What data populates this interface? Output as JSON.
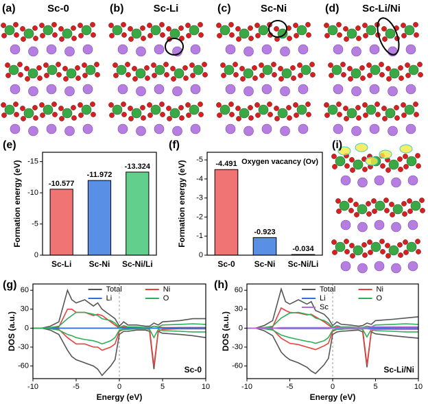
{
  "structure_panels": [
    {
      "label": "(a)",
      "title": "Sc-0"
    },
    {
      "label": "(b)",
      "title": "Sc-Li"
    },
    {
      "label": "(c)",
      "title": "Sc-Ni"
    },
    {
      "label": "(d)",
      "title": "Sc-Li/Ni"
    },
    {
      "label": "(i)"
    }
  ],
  "chart_data": [
    {
      "type": "bar",
      "panel_label": "(e)",
      "ylabel": "Formation energy (eV)",
      "categories": [
        "Sc-Li",
        "Sc-Ni",
        "Sc-Ni/Li"
      ],
      "values": [
        -10.577,
        -11.972,
        -13.324
      ],
      "colors": [
        "#f07474",
        "#5a8fe6",
        "#62d08c"
      ],
      "ylim": [
        0,
        -16.5
      ],
      "yticks": [
        -15,
        -10,
        -5,
        0
      ]
    },
    {
      "type": "bar",
      "panel_label": "(f)",
      "ylabel": "Formation energy (eV)",
      "annotation": "Oxygen vacancy (Ov)",
      "categories": [
        "Sc-0",
        "Sc-Ni",
        "Sc-Ni/Li"
      ],
      "values": [
        -4.491,
        -0.923,
        -0.034
      ],
      "colors": [
        "#f07474",
        "#5a8fe6",
        "#62d08c"
      ],
      "ylim": [
        0,
        -5.4
      ],
      "yticks": [
        -5,
        -4,
        -3,
        -2,
        -1,
        0
      ]
    },
    {
      "type": "line",
      "panel_label": "(g)",
      "xlabel": "Energy (eV)",
      "ylabel": "DOS (a.u.)",
      "annotation": "Sc-0",
      "xlim": [
        -10,
        10
      ],
      "xticks": [
        -10,
        -5,
        0,
        5,
        10
      ],
      "ylim": [
        -80,
        70
      ],
      "yticks": [
        -60,
        -30,
        0,
        30,
        60
      ],
      "x": [
        -10,
        -9,
        -8,
        -7,
        -6,
        -5.5,
        -5,
        -4,
        -3,
        -2.5,
        -2,
        -1,
        -0.5,
        0,
        0.5,
        1,
        2,
        3,
        3.5,
        4,
        4.5,
        5,
        7,
        8.5,
        10
      ],
      "series": [
        {
          "name": "Total",
          "color": "#555555",
          "values": [
            0,
            0,
            3,
            10,
            60,
            45,
            40,
            45,
            35,
            40,
            30,
            20,
            15,
            3,
            10,
            5,
            5,
            3,
            3,
            8,
            5,
            10,
            12,
            15,
            15
          ],
          "values_down": [
            0,
            0,
            -3,
            -10,
            -35,
            -45,
            -50,
            -55,
            -60,
            -65,
            -75,
            -60,
            -50,
            -10,
            -5,
            -5,
            -3,
            -3,
            -5,
            -65,
            -5,
            -8,
            -10,
            -12,
            -15
          ]
        },
        {
          "name": "Ni",
          "color": "#e8403a",
          "values": [
            0,
            0,
            0,
            2,
            30,
            30,
            25,
            25,
            20,
            22,
            20,
            10,
            5,
            0,
            2,
            1,
            1,
            1,
            1,
            3,
            2,
            1,
            1,
            1,
            1
          ],
          "values_down": [
            0,
            0,
            0,
            -2,
            -15,
            -20,
            -25,
            -25,
            -30,
            -30,
            -35,
            -30,
            -25,
            -5,
            -2,
            -1,
            -1,
            -1,
            -2,
            -60,
            -5,
            -2,
            -1,
            -1,
            -1
          ]
        },
        {
          "name": "Li",
          "color": "#2f6fd6",
          "values": [
            0,
            0,
            0,
            0,
            0,
            0,
            0,
            0,
            0,
            0,
            0,
            0,
            0,
            0,
            0,
            0,
            0,
            0,
            0,
            0,
            0,
            0,
            1,
            1,
            1
          ],
          "values_down": [
            0,
            0,
            0,
            0,
            0,
            0,
            0,
            0,
            0,
            0,
            0,
            0,
            0,
            0,
            0,
            0,
            0,
            0,
            0,
            0,
            0,
            0,
            -1,
            -1,
            -1
          ]
        },
        {
          "name": "O",
          "color": "#2fae5a",
          "values": [
            0,
            0,
            1,
            3,
            15,
            20,
            25,
            25,
            22,
            20,
            15,
            12,
            8,
            1,
            4,
            2,
            2,
            1,
            1,
            3,
            2,
            5,
            6,
            7,
            6
          ],
          "values_down": [
            0,
            0,
            -1,
            -3,
            -10,
            -12,
            -15,
            -18,
            -20,
            -22,
            -25,
            -20,
            -15,
            -3,
            -2,
            -2,
            -1,
            -1,
            -2,
            -15,
            -2,
            -4,
            -5,
            -6,
            -6
          ]
        }
      ]
    },
    {
      "type": "line",
      "panel_label": "(h)",
      "xlabel": "Energy (eV)",
      "ylabel": "DOS (a.u.)",
      "annotation": "Sc-Li/Ni",
      "xlim": [
        -10,
        10
      ],
      "xticks": [
        -10,
        -5,
        0,
        5,
        10
      ],
      "ylim": [
        -80,
        70
      ],
      "yticks": [
        -60,
        -30,
        0,
        30,
        60
      ],
      "x": [
        -10,
        -9,
        -8,
        -7,
        -6,
        -5.5,
        -5,
        -4,
        -3,
        -2.5,
        -2,
        -1,
        -0.5,
        0,
        0.5,
        1,
        2,
        3,
        3.5,
        4,
        4.5,
        5,
        7,
        8.5,
        10
      ],
      "series": [
        {
          "name": "Total",
          "color": "#555555",
          "values": [
            0,
            0,
            4,
            12,
            62,
            42,
            38,
            45,
            38,
            42,
            28,
            22,
            15,
            4,
            10,
            6,
            5,
            3,
            4,
            8,
            6,
            12,
            14,
            16,
            18
          ],
          "values_down": [
            0,
            0,
            -4,
            -12,
            -38,
            -45,
            -50,
            -55,
            -62,
            -68,
            -72,
            -58,
            -48,
            -10,
            -6,
            -5,
            -4,
            -3,
            -6,
            -62,
            -6,
            -9,
            -12,
            -14,
            -16
          ]
        },
        {
          "name": "Ni",
          "color": "#e8403a",
          "values": [
            0,
            0,
            0,
            2,
            32,
            28,
            25,
            24,
            21,
            22,
            18,
            10,
            5,
            0,
            2,
            1,
            1,
            1,
            1,
            3,
            2,
            1,
            1,
            1,
            1
          ],
          "values_down": [
            0,
            0,
            0,
            -2,
            -16,
            -20,
            -24,
            -26,
            -30,
            -32,
            -34,
            -28,
            -24,
            -5,
            -2,
            -1,
            -1,
            -1,
            -2,
            -58,
            -5,
            -2,
            -1,
            -1,
            -1
          ]
        },
        {
          "name": "Li",
          "color": "#2f6fd6",
          "values": [
            0,
            0,
            0,
            0,
            0,
            0,
            0,
            0,
            0,
            0,
            0,
            0,
            0,
            0,
            0,
            0,
            0,
            0,
            0,
            0,
            0,
            0,
            1,
            1,
            1
          ],
          "values_down": [
            0,
            0,
            0,
            0,
            0,
            0,
            0,
            0,
            0,
            0,
            0,
            0,
            0,
            0,
            0,
            0,
            0,
            0,
            0,
            0,
            0,
            0,
            -1,
            -1,
            -1
          ]
        },
        {
          "name": "O",
          "color": "#2fae5a",
          "values": [
            0,
            0,
            1,
            3,
            16,
            20,
            24,
            25,
            22,
            21,
            16,
            12,
            8,
            1,
            4,
            2,
            2,
            1,
            1,
            3,
            2,
            5,
            6,
            7,
            6
          ],
          "values_down": [
            0,
            0,
            -1,
            -3,
            -11,
            -13,
            -15,
            -18,
            -21,
            -22,
            -24,
            -20,
            -15,
            -3,
            -2,
            -2,
            -1,
            -1,
            -2,
            -14,
            -2,
            -4,
            -5,
            -6,
            -6
          ]
        },
        {
          "name": "Sc",
          "color": "#b06cd8",
          "values": [
            0,
            0,
            0,
            0,
            1,
            1,
            1,
            1,
            1,
            1,
            1,
            1,
            1,
            0,
            1,
            1,
            1,
            1,
            1,
            1,
            2,
            2,
            2,
            2,
            2
          ],
          "values_down": [
            0,
            0,
            0,
            0,
            -1,
            -1,
            -1,
            -1,
            -1,
            -1,
            -1,
            -1,
            -1,
            0,
            -1,
            -1,
            -1,
            -1,
            -1,
            -1,
            -2,
            -2,
            -2,
            -2,
            -2
          ]
        }
      ]
    }
  ]
}
